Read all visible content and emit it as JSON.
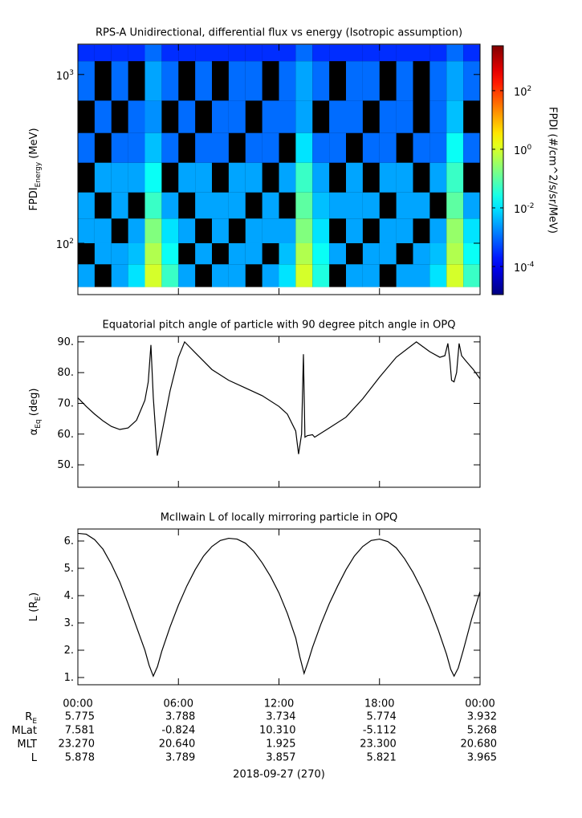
{
  "chart_data": [
    {
      "type": "heatmap",
      "title": "RPS-A Unidirectional, differential flux vs energy (Isotropic assumption)",
      "ylabel_parts": [
        {
          "text": "FPDI"
        },
        {
          "text": "Energy",
          "sub": true
        },
        {
          "text": " (MeV)"
        }
      ],
      "x_edges": [
        0,
        1,
        2,
        3,
        4,
        5,
        6,
        7,
        8,
        9,
        10,
        11,
        12,
        13,
        14,
        15,
        16,
        17,
        18,
        19,
        20,
        21,
        22,
        23,
        24
      ],
      "y_edges": [
        55,
        75,
        100,
        140,
        200,
        300,
        450,
        700,
        1200,
        1500
      ],
      "values": [
        [
          0.003,
          null,
          0.003,
          0.01,
          1,
          0.05,
          0.003,
          null,
          0.003,
          0.003,
          null,
          0.003,
          0.01,
          1,
          0.03,
          null,
          0.003,
          0.003,
          null,
          0.003,
          0.003,
          0.01,
          1,
          0.05
        ],
        [
          null,
          0.003,
          0.003,
          0.005,
          0.5,
          0.02,
          null,
          0.003,
          null,
          0.003,
          0.003,
          null,
          0.005,
          0.5,
          0.02,
          0.003,
          null,
          0.003,
          0.003,
          null,
          0.003,
          0.005,
          0.5,
          0.02
        ],
        [
          0.003,
          0.003,
          null,
          0.003,
          0.2,
          0.01,
          0.003,
          null,
          0.003,
          null,
          0.003,
          0.003,
          0.003,
          0.2,
          0.01,
          null,
          0.003,
          null,
          0.003,
          0.003,
          null,
          0.003,
          0.3,
          0.01
        ],
        [
          0.003,
          null,
          0.003,
          null,
          0.05,
          0.003,
          null,
          0.003,
          0.003,
          0.003,
          null,
          0.003,
          null,
          0.1,
          0.005,
          0.003,
          0.003,
          0.003,
          null,
          0.003,
          0.003,
          null,
          0.1,
          0.003
        ],
        [
          null,
          0.003,
          0.003,
          0.003,
          0.02,
          null,
          0.003,
          0.003,
          null,
          0.003,
          0.003,
          null,
          0.003,
          0.05,
          0.003,
          null,
          0.003,
          null,
          0.003,
          0.003,
          null,
          0.003,
          0.05,
          null
        ],
        [
          0.001,
          null,
          0.001,
          0.001,
          0.005,
          0.001,
          null,
          0.001,
          0.001,
          null,
          0.001,
          0.001,
          null,
          0.01,
          0.001,
          0.001,
          null,
          0.001,
          0.001,
          null,
          0.001,
          0.001,
          0.02,
          0.001
        ],
        [
          null,
          0.001,
          null,
          0.001,
          0.002,
          null,
          0.001,
          null,
          0.001,
          0.001,
          null,
          0.001,
          0.001,
          0.003,
          null,
          0.001,
          0.001,
          null,
          0.001,
          0.001,
          null,
          0.001,
          0.005,
          null
        ],
        [
          0.001,
          null,
          0.001,
          null,
          0.003,
          0.001,
          null,
          0.001,
          null,
          0.001,
          0.001,
          null,
          0.001,
          0.003,
          0.001,
          null,
          0.001,
          0.001,
          null,
          0.001,
          null,
          0.001,
          0.003,
          0.001
        ],
        [
          0.0003,
          0.0003,
          0.0003,
          0.0003,
          0.001,
          0.0003,
          0.0003,
          0.0003,
          0.0003,
          0.0003,
          0.0003,
          0.0003,
          0.0003,
          0.001,
          0.0003,
          0.0003,
          0.0003,
          0.0003,
          0.0003,
          0.0003,
          0.0003,
          0.0003,
          0.001,
          0.0003
        ]
      ],
      "xlim": [
        0,
        24
      ],
      "xticks": [
        0,
        6,
        12,
        18,
        24
      ],
      "ylim": [
        49.6,
        1513
      ],
      "yscale": "log",
      "yticks": [
        {
          "value": 100,
          "label": "10",
          "sup": "2"
        },
        {
          "value": 1000,
          "label": "10",
          "sup": "3"
        }
      ],
      "colorbar": {
        "label": "FPDI (#/cm^2/s/sr/MeV)",
        "colormap": "jet",
        "lim": [
          1.1e-05,
          3400
        ],
        "ticks": [
          {
            "value": 0.0001,
            "label": "10",
            "sup": "-4"
          },
          {
            "value": 0.01,
            "label": "10",
            "sup": "-2"
          },
          {
            "value": 1,
            "label": "10",
            "sup": "0"
          },
          {
            "value": 100,
            "label": "10",
            "sup": "2"
          }
        ]
      }
    },
    {
      "type": "line",
      "title": "Equatorial pitch angle of particle with 90 degree pitch angle in OPQ",
      "ylabel_parts": [
        {
          "text": "α"
        },
        {
          "text": "Eq",
          "sub": true
        },
        {
          "text": " (deg)"
        }
      ],
      "x": [
        0,
        0.5,
        1,
        1.5,
        2,
        2.5,
        3,
        3.5,
        4,
        4.2,
        4.36,
        4.5,
        4.74,
        5,
        5.5,
        6,
        6.37,
        7,
        8,
        9,
        10,
        11,
        12,
        12.5,
        13,
        13.17,
        13.35,
        13.46,
        13.55,
        13.7,
        14,
        14.13,
        15,
        16,
        17,
        18,
        19,
        20.2,
        20.5,
        21,
        21.6,
        21.9,
        22.08,
        22.2,
        22.3,
        22.45,
        22.6,
        22.75,
        22.9,
        23.2,
        23.6,
        24
      ],
      "y": [
        71.8,
        69,
        66.5,
        64.3,
        62.5,
        61.5,
        62,
        64.5,
        71,
        77,
        89,
        72,
        53,
        60,
        74,
        85,
        90,
        86.5,
        81,
        77.5,
        75,
        72.5,
        69,
        66.5,
        61,
        53.5,
        60,
        86,
        59,
        59.5,
        59.8,
        59,
        62,
        65.5,
        71.5,
        78.5,
        85,
        90,
        88.8,
        86.8,
        85,
        85.5,
        89.5,
        84,
        77.5,
        77,
        80,
        89.5,
        85.5,
        83.5,
        81,
        78
      ],
      "color": "#000000",
      "xlim": [
        0,
        24
      ],
      "xticks": [
        0,
        6,
        12,
        18,
        24
      ],
      "ylim": [
        42.7,
        91.8
      ],
      "yticks": [
        {
          "value": 50,
          "label": "50."
        },
        {
          "value": 60,
          "label": "60."
        },
        {
          "value": 70,
          "label": "70."
        },
        {
          "value": 80,
          "label": "80."
        },
        {
          "value": 90,
          "label": "90."
        }
      ]
    },
    {
      "type": "line",
      "title": "McIlwain L of locally mirroring particle in OPQ",
      "ylabel_parts": [
        {
          "text": "L (R"
        },
        {
          "text": "E",
          "sub": true
        },
        {
          "text": ")"
        }
      ],
      "x": [
        0,
        0.5,
        1,
        1.5,
        2,
        2.5,
        3,
        3.5,
        4,
        4.25,
        4.5,
        4.75,
        5,
        5.5,
        6,
        6.5,
        7,
        7.5,
        8,
        8.5,
        9,
        9.5,
        10,
        10.5,
        11,
        11.5,
        12,
        12.5,
        13,
        13.25,
        13.5,
        13.75,
        14,
        14.5,
        15,
        15.5,
        16,
        16.5,
        17,
        17.5,
        18,
        18.5,
        19,
        19.5,
        20,
        20.5,
        21,
        21.5,
        22,
        22.25,
        22.45,
        22.7,
        23,
        23.5,
        24
      ],
      "y": [
        6.28,
        6.25,
        6.05,
        5.7,
        5.15,
        4.5,
        3.7,
        2.85,
        2.0,
        1.45,
        1.05,
        1.4,
        1.95,
        2.85,
        3.65,
        4.35,
        4.95,
        5.45,
        5.8,
        6.02,
        6.1,
        6.07,
        5.92,
        5.62,
        5.2,
        4.7,
        4.1,
        3.35,
        2.45,
        1.75,
        1.15,
        1.6,
        2.1,
        2.95,
        3.7,
        4.35,
        4.95,
        5.45,
        5.8,
        6.02,
        6.07,
        5.98,
        5.75,
        5.35,
        4.85,
        4.25,
        3.55,
        2.75,
        1.85,
        1.3,
        1.05,
        1.35,
        2.0,
        3.15,
        4.15
      ],
      "color": "#000000",
      "xlim": [
        0,
        24
      ],
      "xticks": [
        {
          "value": 0,
          "label": "00:00"
        },
        {
          "value": 6,
          "label": "06:00"
        },
        {
          "value": 12,
          "label": "12:00"
        },
        {
          "value": 18,
          "label": "18:00"
        },
        {
          "value": 24,
          "label": "00:00"
        }
      ],
      "ylim": [
        0.735,
        6.44
      ],
      "yticks": [
        {
          "value": 1,
          "label": "1."
        },
        {
          "value": 2,
          "label": "2."
        },
        {
          "value": 3,
          "label": "3."
        },
        {
          "value": 4,
          "label": "4."
        },
        {
          "value": 5,
          "label": "5."
        },
        {
          "value": 6,
          "label": "6."
        }
      ],
      "ephemeris": [
        {
          "label": "R",
          "sub": "E",
          "values": [
            "5.775",
            "3.788",
            "3.734",
            "5.774",
            "3.932"
          ]
        },
        {
          "label": "MLat",
          "values": [
            "7.581",
            "-0.824",
            "10.310",
            "-5.112",
            "5.268"
          ]
        },
        {
          "label": "MLT",
          "values": [
            "23.270",
            "20.640",
            "1.925",
            "23.300",
            "20.680"
          ]
        },
        {
          "label": "L",
          "values": [
            "5.878",
            "3.789",
            "3.857",
            "5.821",
            "3.965"
          ]
        }
      ],
      "xlabel": "2018-09-27 (270)"
    }
  ]
}
